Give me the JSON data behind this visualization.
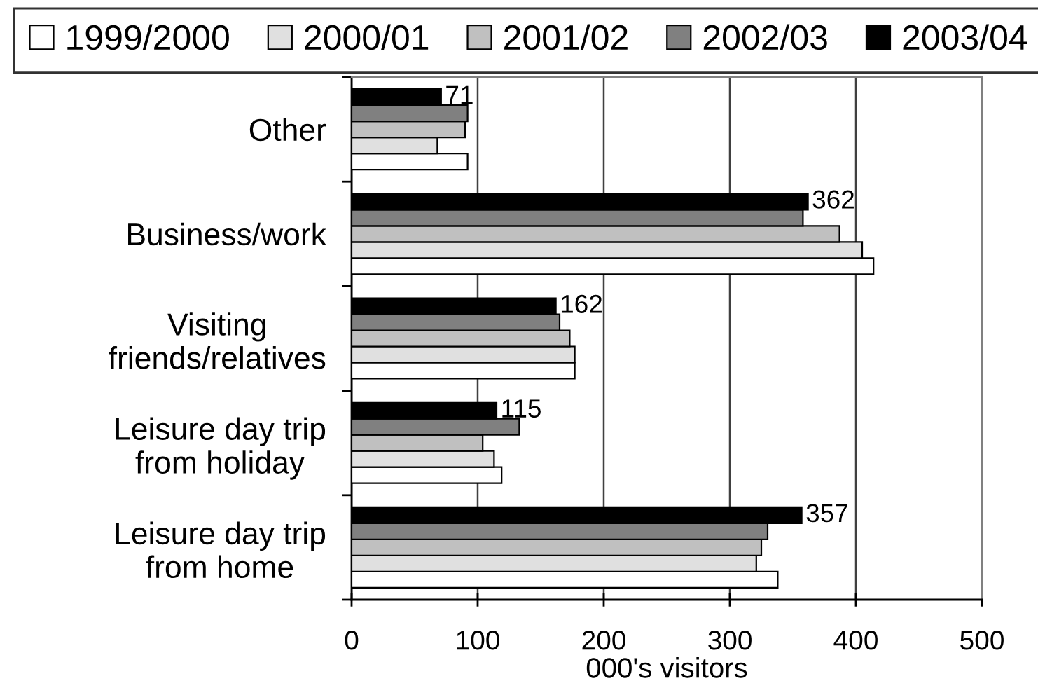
{
  "chart_data": {
    "type": "bar",
    "orientation": "horizontal",
    "categories": [
      "Other",
      "Business/work",
      "Visiting\nfriends/relatives",
      "Leisure day trip\nfrom holiday",
      "Leisure day trip\nfrom home"
    ],
    "series": [
      {
        "name": "1999/2000",
        "color": "#ffffff",
        "values": [
          92,
          414,
          177,
          119,
          338
        ]
      },
      {
        "name": "2000/01",
        "color": "#e0e0e0",
        "values": [
          68,
          405,
          177,
          113,
          321
        ]
      },
      {
        "name": "2001/02",
        "color": "#c0c0c0",
        "values": [
          90,
          387,
          173,
          104,
          325
        ]
      },
      {
        "name": "2002/03",
        "color": "#808080",
        "values": [
          92,
          358,
          165,
          133,
          330
        ]
      },
      {
        "name": "2003/04",
        "color": "#000000",
        "values": [
          71,
          362,
          162,
          115,
          357
        ],
        "value_labels": [
          "71",
          "362",
          "162",
          "115",
          "357"
        ]
      }
    ],
    "xlabel": "000's visitors",
    "xlim": [
      0,
      500
    ],
    "xticks": [
      0,
      100,
      200,
      300,
      400,
      500
    ],
    "grid": "x",
    "legend": "top"
  }
}
